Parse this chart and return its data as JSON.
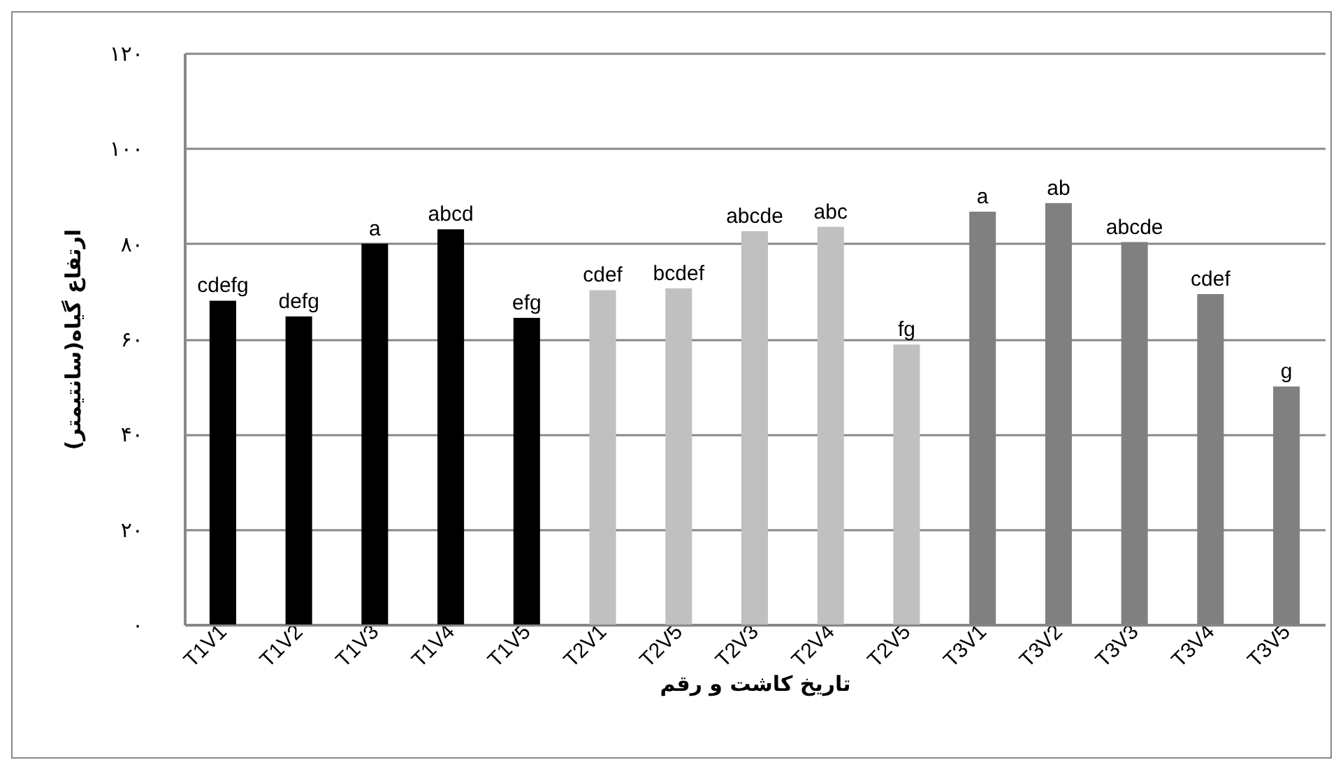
{
  "chart_data": {
    "type": "bar",
    "xlabel": "تاریخ کاشت و رقم",
    "ylabel": "ارتفاع گیاه(سانتیمتر)",
    "categories": [
      "T1V1",
      "T1V2",
      "T1V3",
      "T1V4",
      "T1V5",
      "T2V1",
      "T2V5",
      "T2V3",
      "T2V4",
      "T2V5",
      "T3V1",
      "T3V2",
      "T3V3",
      "T3V4",
      "T3V5"
    ],
    "values": [
      68,
      64.7,
      80,
      83,
      64.4,
      70.2,
      70.6,
      82.6,
      83.5,
      58.8,
      86.7,
      88.5,
      80.3,
      69.4,
      50
    ],
    "colors": [
      "#000000",
      "#000000",
      "#000000",
      "#000000",
      "#000000",
      "#c0c0c0",
      "#c0c0c0",
      "#c0c0c0",
      "#c0c0c0",
      "#c0c0c0",
      "#808080",
      "#808080",
      "#808080",
      "#808080",
      "#808080"
    ],
    "value_labels": [
      "cdefg",
      "defg",
      "a",
      "abcd",
      "efg",
      "cdef",
      "bcdef",
      "abcde",
      "abc",
      "fg",
      "a",
      "ab",
      "abcde",
      "cdef",
      "g"
    ],
    "ylim": [
      0,
      120
    ],
    "yticks": [
      {
        "value": 0,
        "label": "۰"
      },
      {
        "value": 20,
        "label": "۲۰"
      },
      {
        "value": 40,
        "label": "۴۰"
      },
      {
        "value": 60,
        "label": "۶۰"
      },
      {
        "value": 80,
        "label": "۸۰"
      },
      {
        "value": 100,
        "label": "۱۰۰"
      },
      {
        "value": 120,
        "label": "۱۲۰"
      }
    ],
    "grid": "y"
  }
}
